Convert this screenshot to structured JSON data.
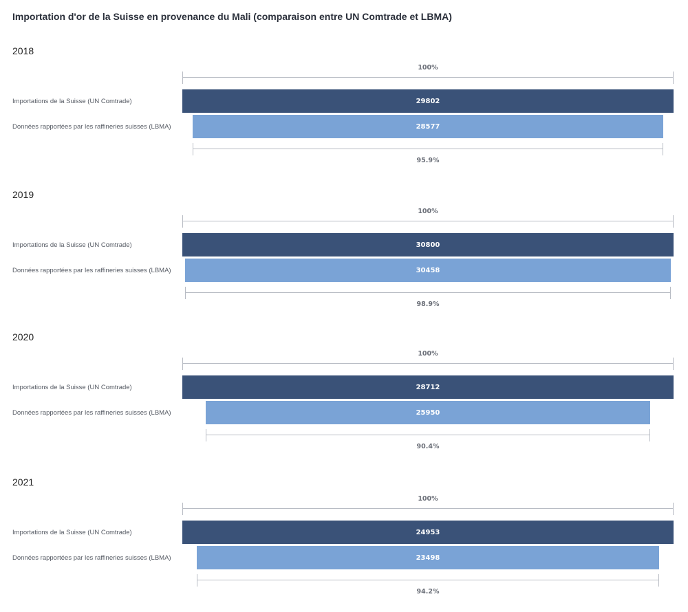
{
  "chart_data": {
    "type": "bar",
    "title": "Importation d'or de la Suisse en provenance du Mali (comparaison entre UN Comtrade et LBMA)",
    "categories": [
      "Importations de la Suisse (UN Comtrade)",
      "Données rapportées par les raffineries suisses (LBMA)"
    ],
    "orientation": "horizontal",
    "reference_label": "100%",
    "colors": {
      "comtrade": "#3a5278",
      "lbma": "#7aa3d6",
      "bracket": "#b8bcc4"
    },
    "panels": [
      {
        "year": "2018",
        "comtrade": 29802,
        "lbma": 28577,
        "ratio_label": "95.9%"
      },
      {
        "year": "2019",
        "comtrade": 30800,
        "lbma": 30458,
        "ratio_label": "98.9%"
      },
      {
        "year": "2020",
        "comtrade": 28712,
        "lbma": 25950,
        "ratio_label": "90.4%"
      },
      {
        "year": "2021",
        "comtrade": 24953,
        "lbma": 23498,
        "ratio_label": "94.2%"
      }
    ]
  }
}
